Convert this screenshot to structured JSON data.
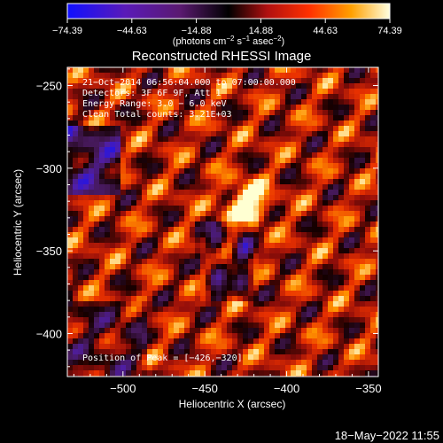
{
  "chart_data": {
    "type": "heatmap",
    "title": "Reconstructed RHESSI Image",
    "xlabel": "Heliocentric X (arcsec)",
    "ylabel": "Heliocentric Y (arcsec)",
    "xlim": [
      -534,
      -344
    ],
    "ylim": [
      -426,
      -239
    ],
    "x_ticks": [
      -500,
      -450,
      -400,
      -350
    ],
    "x_tick_labels": [
      "−500",
      "−450",
      "−400",
      "−350"
    ],
    "y_ticks": [
      -250,
      -300,
      -350,
      -400
    ],
    "y_tick_labels": [
      "−250",
      "−300",
      "−350",
      "−400"
    ],
    "colorbar": {
      "ticks": [
        -74.39,
        -44.63,
        -14.88,
        14.88,
        44.63,
        74.39
      ],
      "tick_labels": [
        "−74.39",
        "−44.63",
        "−14.88",
        "14.88",
        "44.63",
        "74.39"
      ],
      "range": [
        -74.39,
        74.39
      ],
      "unit_label": "(photons cm",
      "unit_exp1": "−2",
      "unit_mid": " s",
      "unit_exp2": "−1",
      "unit_mid2": " asec",
      "unit_exp3": "−2",
      "unit_end": ")"
    },
    "peak": {
      "x": -426,
      "y": -320,
      "value": 74.39
    },
    "annotations": [
      "21−Oct−2014 06:56:04.000 to 07:00:00.000",
      "Detectors: 3F 6F 9F, Att 1",
      "Energy Range: 3.0 − 6.0 keV",
      "Clean     Total counts: 3.21E+03"
    ],
    "peak_label": "Position of Peak = [−426,−320]"
  },
  "footer": {
    "timestamp": "18−May−2022 11:55"
  }
}
